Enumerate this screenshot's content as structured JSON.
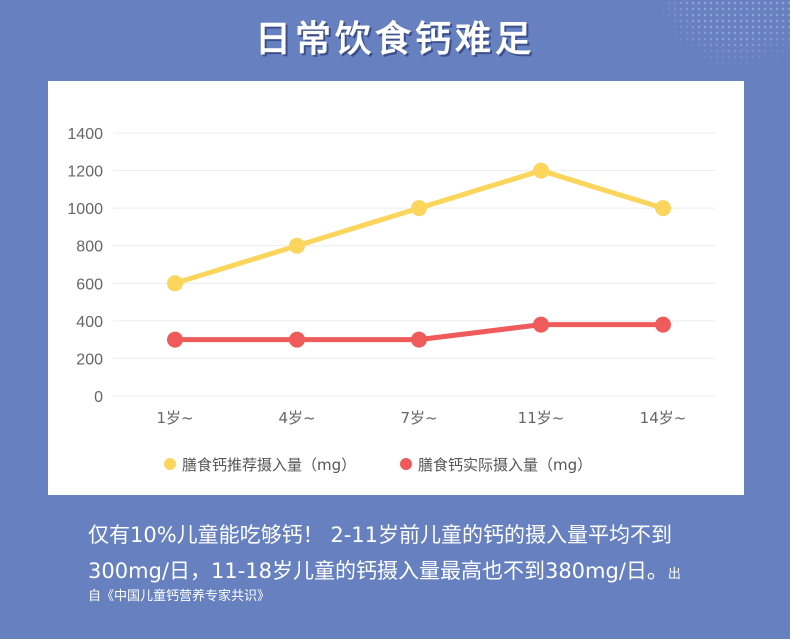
{
  "title": "日常饮食钙难足",
  "note": {
    "text": "仅有10%儿童能吃够钙！ 2-11岁前儿童的钙的摄入量平均不到300mg/日，11-18岁儿童的钙摄入量最高也不到380mg/日。",
    "source_a": "出",
    "source_b": "自《中国儿童钙营养专家共识》"
  },
  "chart_data": {
    "type": "line",
    "categories": [
      "1岁~",
      "4岁~",
      "7岁~",
      "11岁~",
      "14岁~"
    ],
    "ylim": [
      0,
      1400
    ],
    "yticks": [
      0,
      200,
      400,
      600,
      800,
      1000,
      1200,
      1400
    ],
    "grid": true,
    "legend_position": "bottom",
    "series": [
      {
        "name": "膳食钙推荐摄入量（mg）",
        "color": "#fcd55c",
        "values": [
          600,
          800,
          1000,
          1200,
          1000
        ]
      },
      {
        "name": "膳食钙实际摄入量（mg）",
        "color": "#ef5a5a",
        "values": [
          300,
          300,
          300,
          380,
          380
        ]
      }
    ]
  }
}
